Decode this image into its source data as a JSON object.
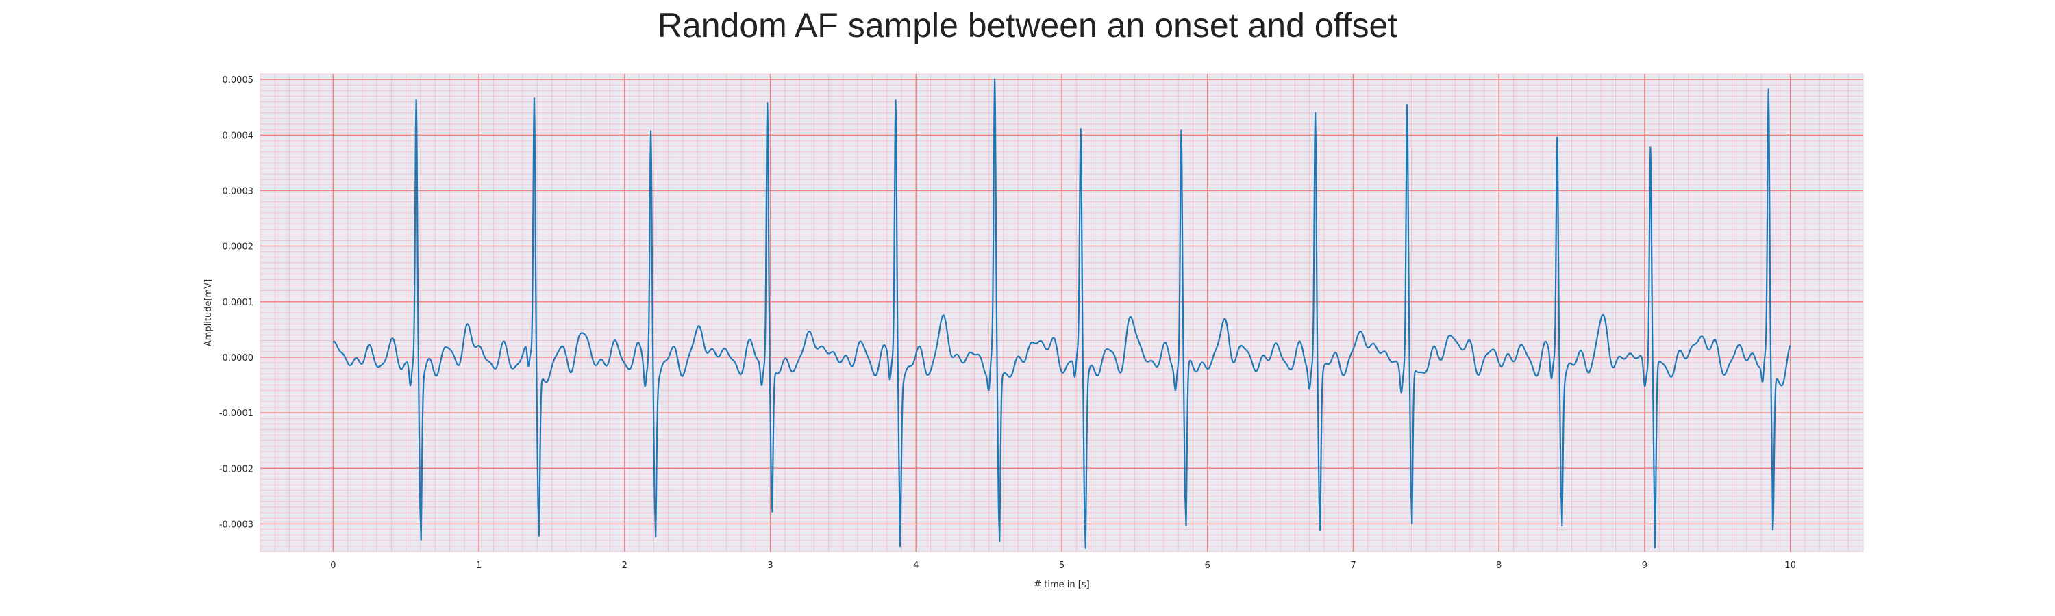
{
  "chart_data": {
    "type": "line",
    "title": "Random AF sample between an onset and offset",
    "xlabel": "# time in [s]",
    "ylabel": "Amplitude[mV]",
    "xlim": [
      -0.5,
      10.5
    ],
    "ylim": [
      -0.00035,
      0.00051
    ],
    "xticks": [
      0,
      1,
      2,
      3,
      4,
      5,
      6,
      7,
      8,
      9,
      10
    ],
    "xtick_labels": [
      "0",
      "1",
      "2",
      "3",
      "4",
      "5",
      "6",
      "7",
      "8",
      "9",
      "10"
    ],
    "yticks": [
      -0.0003,
      -0.0002,
      -0.0001,
      0.0,
      0.0001,
      0.0002,
      0.0003,
      0.0004,
      0.0005
    ],
    "ytick_labels": [
      "-0.0003",
      "-0.0002",
      "-0.0001",
      "0.0000",
      "0.0001",
      "0.0002",
      "0.0003",
      "0.0004",
      "0.0005"
    ],
    "grid": {
      "major": true,
      "minor": true
    },
    "x_range": [
      0,
      10
    ],
    "series": [
      {
        "color": "#1f77b4",
        "beats": [
          {
            "t": 0.57,
            "peak": 0.00046,
            "trough": -0.000305
          },
          {
            "t": 1.38,
            "peak": 0.00047,
            "trough": -0.000295
          },
          {
            "t": 2.18,
            "peak": 0.000415,
            "trough": -0.00028
          },
          {
            "t": 2.98,
            "peak": 0.000465,
            "trough": -0.00026
          },
          {
            "t": 3.86,
            "peak": 0.00046,
            "trough": -0.000275
          },
          {
            "t": 4.54,
            "peak": 0.00047,
            "trough": -0.00032
          },
          {
            "t": 5.13,
            "peak": 0.0004,
            "trough": -0.000315
          },
          {
            "t": 5.82,
            "peak": 0.000415,
            "trough": -0.000295
          },
          {
            "t": 6.74,
            "peak": 0.00045,
            "trough": -0.000285
          },
          {
            "t": 7.37,
            "peak": 0.000445,
            "trough": -0.0003
          },
          {
            "t": 8.4,
            "peak": 0.0004,
            "trough": -0.00026
          },
          {
            "t": 9.04,
            "peak": 0.00039,
            "trough": -0.00031
          },
          {
            "t": 9.85,
            "peak": 0.00047,
            "trough": -0.00026
          }
        ]
      }
    ]
  },
  "colors": {
    "plot_background": "#eae9f2",
    "major_grid": "#f08080",
    "minor_grid": "#f4b9c4",
    "line": "#1f77b4"
  }
}
